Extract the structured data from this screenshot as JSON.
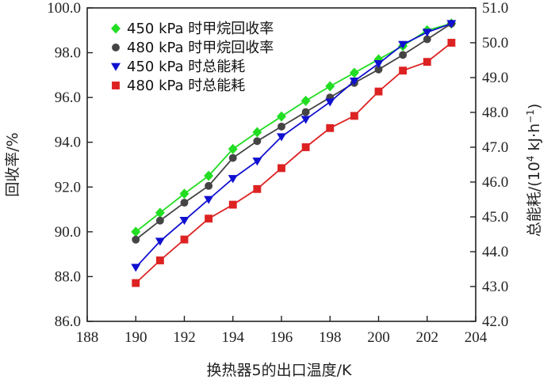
{
  "chart_data": {
    "type": "line",
    "x": [
      190,
      191,
      192,
      193,
      194,
      195,
      196,
      197,
      198,
      199,
      200,
      201,
      202,
      203
    ],
    "xlabel": "换热器5的出口温度/K",
    "ylabel_left": "回收率/%",
    "ylabel_right_main": "总能耗/(10",
    "ylabel_right_sup1": "4",
    "ylabel_right_mid": " kJ·h",
    "ylabel_right_sup2": "−1",
    "ylabel_right_end": ")",
    "xlim": [
      188,
      204
    ],
    "ylim_left": [
      86.0,
      100.0
    ],
    "ylim_right": [
      42.0,
      51.0
    ],
    "x_ticks": [
      "188",
      "190",
      "192",
      "194",
      "196",
      "198",
      "200",
      "202",
      "204"
    ],
    "y_left_ticks": [
      "86.0",
      "88.0",
      "90.0",
      "92.0",
      "94.0",
      "96.0",
      "98.0",
      "100.0"
    ],
    "y_right_ticks": [
      "42.0",
      "43.0",
      "44.0",
      "45.0",
      "46.0",
      "47.0",
      "48.0",
      "49.0",
      "50.0",
      "51.0"
    ],
    "legend_position": "top-left",
    "series": [
      {
        "name": "450 kPa 时甲烷回收率",
        "axis": "left",
        "marker": "diamond",
        "color": "#22dd22",
        "values": [
          90.0,
          90.85,
          91.7,
          92.5,
          93.7,
          94.45,
          95.15,
          95.85,
          96.5,
          97.1,
          97.7,
          98.3,
          99.0,
          99.3
        ]
      },
      {
        "name": "480 kPa 时甲烷回收率",
        "axis": "left",
        "marker": "circle",
        "color": "#444444",
        "values": [
          89.65,
          90.5,
          91.3,
          92.05,
          93.3,
          94.05,
          94.7,
          95.35,
          96.0,
          96.65,
          97.25,
          97.9,
          98.6,
          99.3
        ]
      },
      {
        "name": "450 kPa 时总能耗",
        "axis": "right",
        "marker": "triangle-down",
        "color": "#1010d0",
        "values": [
          43.55,
          44.3,
          44.9,
          45.5,
          46.1,
          46.6,
          47.3,
          47.8,
          48.3,
          48.9,
          49.4,
          49.95,
          50.3,
          50.55
        ]
      },
      {
        "name": "480 kPa 时总能耗",
        "axis": "right",
        "marker": "square",
        "color": "#dd2222",
        "values": [
          43.1,
          43.75,
          44.35,
          44.95,
          45.35,
          45.8,
          46.4,
          47.0,
          47.55,
          47.9,
          48.6,
          49.2,
          49.45,
          50.0
        ]
      }
    ]
  }
}
